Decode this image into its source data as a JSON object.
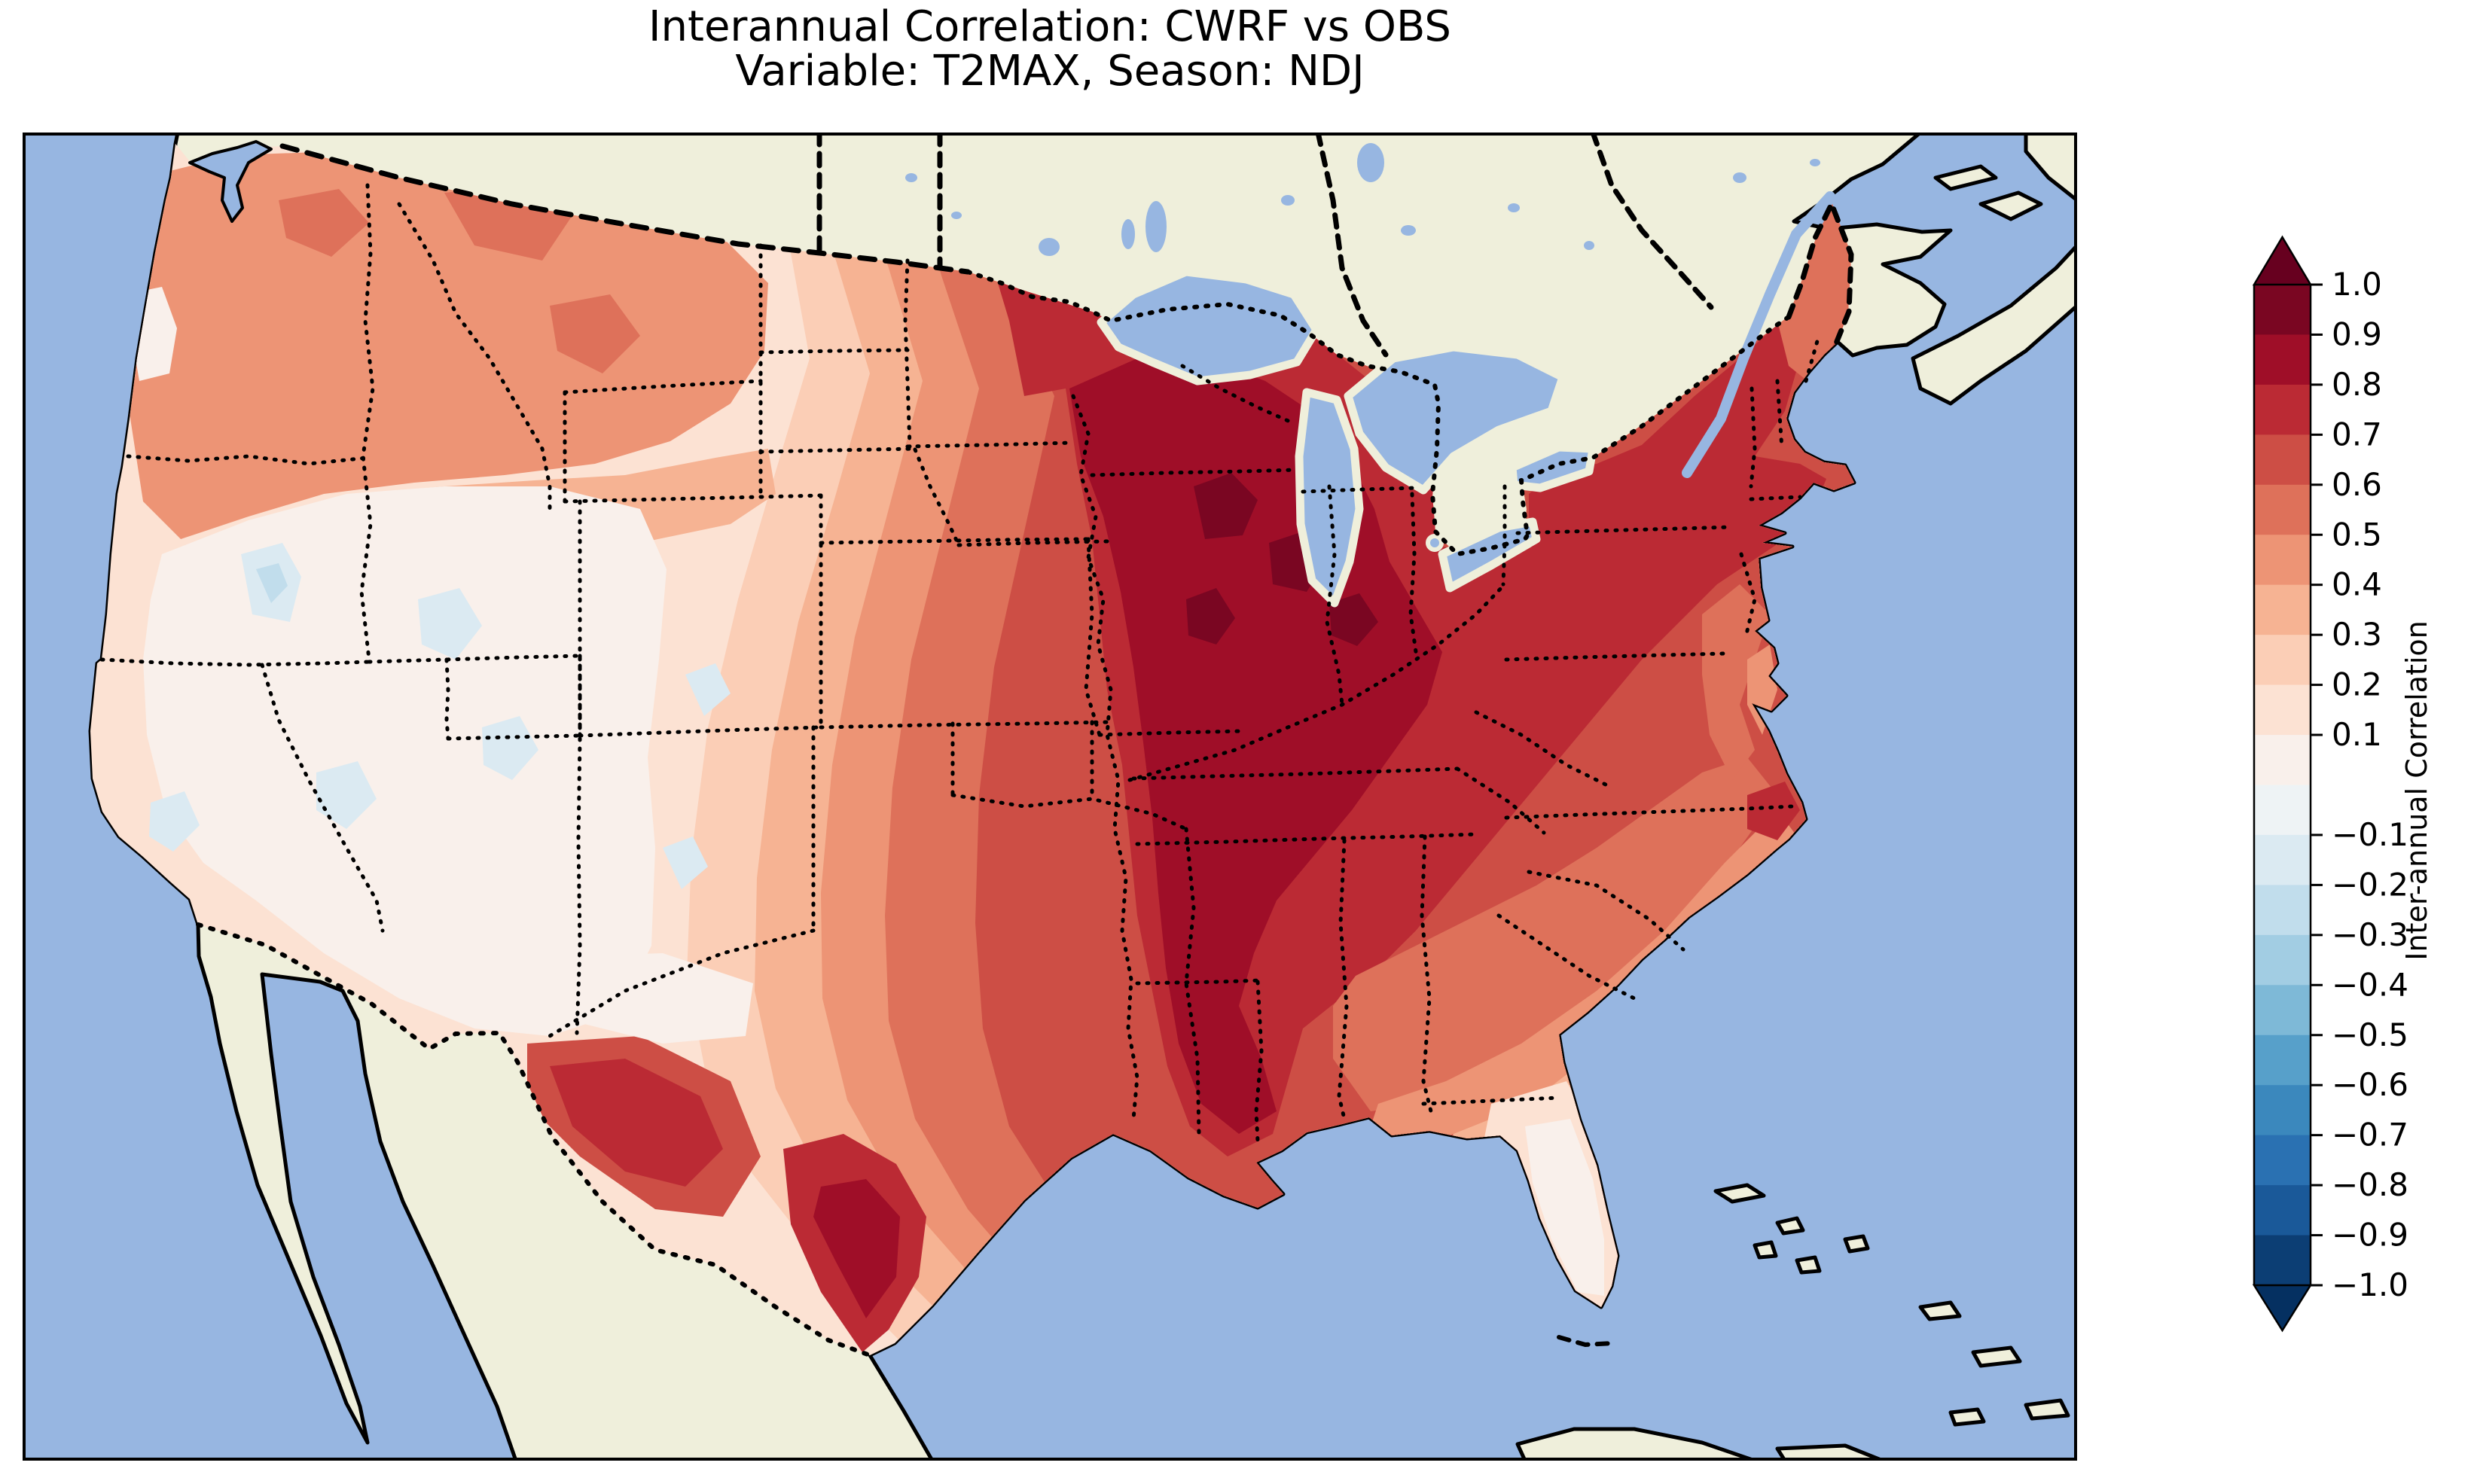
{
  "figure": {
    "title_line1": "Interannual Correlation: CWRF vs OBS",
    "title_line2": "Variable: T2MAX, Season: NDJ"
  },
  "colorbar": {
    "label": "Inter-annual Correlation",
    "colormap": "RdBu_r",
    "vmin": -1.0,
    "vmax": 1.0,
    "extend": "both",
    "ticks": [
      {
        "label": "1.0",
        "value": 1.0
      },
      {
        "label": "0.9",
        "value": 0.9
      },
      {
        "label": "0.8",
        "value": 0.8
      },
      {
        "label": "0.7",
        "value": 0.7
      },
      {
        "label": "0.6",
        "value": 0.6
      },
      {
        "label": "0.5",
        "value": 0.5
      },
      {
        "label": "0.4",
        "value": 0.4
      },
      {
        "label": "0.3",
        "value": 0.3
      },
      {
        "label": "0.2",
        "value": 0.2
      },
      {
        "label": "0.1",
        "value": 0.1
      },
      {
        "label": "−0.1",
        "value": -0.1
      },
      {
        "label": "−0.2",
        "value": -0.2
      },
      {
        "label": "−0.3",
        "value": -0.3
      },
      {
        "label": "−0.4",
        "value": -0.4
      },
      {
        "label": "−0.5",
        "value": -0.5
      },
      {
        "label": "−0.6",
        "value": -0.6
      },
      {
        "label": "−0.7",
        "value": -0.7
      },
      {
        "label": "−0.8",
        "value": -0.8
      },
      {
        "label": "−0.9",
        "value": -0.9
      },
      {
        "label": "−1.0",
        "value": -1.0
      }
    ],
    "segment_colors_top_to_bottom": [
      "#7a0622",
      "#9f0e28",
      "#bb2a34",
      "#cd4e45",
      "#de715a",
      "#ed9475",
      "#f6b393",
      "#fbceb6",
      "#fce2d3",
      "#f9f0eb",
      "#eef3f5",
      "#dbeaf2",
      "#c1ddec",
      "#a2cde3",
      "#7eb9d7",
      "#57a0ca",
      "#3b88bd",
      "#2a71b2",
      "#1a5999",
      "#0c3e74"
    ],
    "arrow_top_color": "#67001f",
    "arrow_bottom_color": "#053061"
  },
  "map": {
    "ocean_color": "#97b6e1",
    "nodata_land_color": "#efefdb",
    "coastline_color": "#000000",
    "state_border_style": "dotted black",
    "country_border_style": "dashed black",
    "masked_regions": "Canada, Mexico, oceans and Great Lakes shown without data"
  },
  "chart_data": {
    "type": "heatmap",
    "title": "Interannual Correlation: CWRF vs OBS",
    "subtitle": "Variable: T2MAX, Season: NDJ",
    "comparison": "CWRF vs OBS",
    "variable": "T2MAX",
    "season": "NDJ",
    "colorbar_label": "Inter-annual Correlation",
    "value_range": [
      -1.0,
      1.0
    ],
    "contour_interval": 0.1,
    "colormap": "RdBu_r",
    "domain": "Contiguous United States (filled contours); Canada/Mexico/oceans masked",
    "regional_values": [
      {
        "region": "Pacific Northwest (WA/OR)",
        "approx_correlation": 0.45
      },
      {
        "region": "Western Oregon coastal pocket",
        "approx_correlation": 0.05
      },
      {
        "region": "Great Basin (NV/UT/SE CA)",
        "approx_correlation": -0.1
      },
      {
        "region": "Southern California",
        "approx_correlation": 0.1
      },
      {
        "region": "Arizona / New Mexico",
        "approx_correlation": 0.15
      },
      {
        "region": "Montana / Wyoming / Colorado east slope",
        "approx_correlation": 0.35
      },
      {
        "region": "Dakotas / Nebraska / Kansas",
        "approx_correlation": 0.55
      },
      {
        "region": "Minnesota",
        "approx_correlation": 0.75
      },
      {
        "region": "Wisconsin / Michigan",
        "approx_correlation": 0.85
      },
      {
        "region": "Corn Belt (IA/IL/IN/MO)",
        "approx_correlation": 0.92
      },
      {
        "region": "Ohio Valley / Kentucky / Tennessee",
        "approx_correlation": 0.85
      },
      {
        "region": "Oklahoma / North Texas",
        "approx_correlation": 0.75
      },
      {
        "region": "South Texas",
        "approx_correlation": 0.85
      },
      {
        "region": "Louisiana / Mississippi",
        "approx_correlation": 0.8
      },
      {
        "region": "Gulf Coast Alabama / Georgia coastal plain",
        "approx_correlation": 0.4
      },
      {
        "region": "Florida peninsula",
        "approx_correlation": 0.05
      },
      {
        "region": "Carolinas / Virginia",
        "approx_correlation": 0.6
      },
      {
        "region": "Mid-Atlantic / New York / New England",
        "approx_correlation": 0.75
      },
      {
        "region": "Maine",
        "approx_correlation": 0.55
      }
    ]
  }
}
